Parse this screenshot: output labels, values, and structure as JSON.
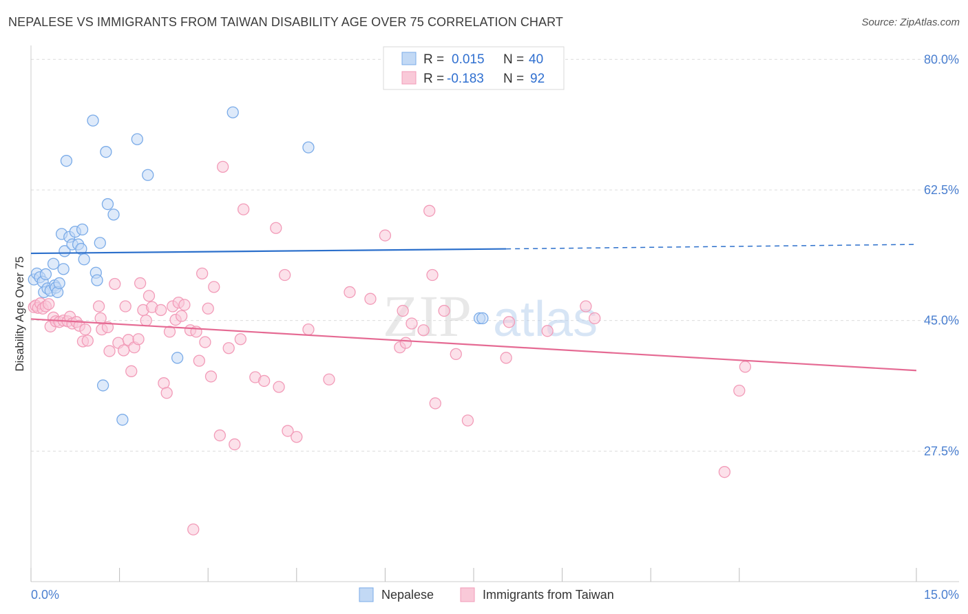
{
  "title": "NEPALESE VS IMMIGRANTS FROM TAIWAN DISABILITY AGE OVER 75 CORRELATION CHART",
  "source": "Source: ZipAtlas.com",
  "watermark": {
    "zip": "ZIP",
    "atlas": "atlas"
  },
  "stats_box": {
    "rows": [
      {
        "r_label": "R =",
        "r_value": "0.015",
        "n_label": "N =",
        "n_value": "40"
      },
      {
        "r_label": "R =",
        "r_value": "-0.183",
        "n_label": "N =",
        "n_value": "92"
      }
    ]
  },
  "chart_data": {
    "type": "scatter",
    "title": "NEPALESE VS IMMIGRANTS FROM TAIWAN DISABILITY AGE OVER 75 CORRELATION CHART",
    "xlabel": "",
    "ylabel": "Disability Age Over 75",
    "xlim": [
      0,
      15
    ],
    "ylim": [
      10,
      81.5
    ],
    "x_tick_labels": [
      {
        "value": 0,
        "label": "0.0%"
      },
      {
        "value": 15,
        "label": "15.0%"
      }
    ],
    "y_tick_labels": [
      {
        "value": 80,
        "label": "80.0%"
      },
      {
        "value": 62.5,
        "label": "62.5%"
      },
      {
        "value": 45,
        "label": "45.0%"
      },
      {
        "value": 27.5,
        "label": "27.5%"
      }
    ],
    "x_minor_ticks": [
      0,
      1.5,
      3,
      4.5,
      6,
      7.5,
      9,
      10.5,
      12,
      15
    ],
    "grid": true,
    "legend_position": "bottom-center",
    "series": [
      {
        "name": "Nepalese",
        "color": "#7aabe8",
        "fill": "#c2d9f5",
        "line_color": "#2b6fcb",
        "trend": {
          "x0": 0,
          "y0": 54.0,
          "x1": 8.05,
          "y1": 54.6,
          "dash_to_x": 15,
          "dash_to_y": 55.2
        },
        "points": [
          [
            0.05,
            50.5
          ],
          [
            0.1,
            51.3
          ],
          [
            0.15,
            50.8
          ],
          [
            0.2,
            50.2
          ],
          [
            0.22,
            48.8
          ],
          [
            0.25,
            51.2
          ],
          [
            0.28,
            49.3
          ],
          [
            0.33,
            49.0
          ],
          [
            0.38,
            52.6
          ],
          [
            0.4,
            49.7
          ],
          [
            0.42,
            49.4
          ],
          [
            0.45,
            48.8
          ],
          [
            0.48,
            50.0
          ],
          [
            0.52,
            56.6
          ],
          [
            0.55,
            51.9
          ],
          [
            0.57,
            54.3
          ],
          [
            0.6,
            66.4
          ],
          [
            0.65,
            56.2
          ],
          [
            0.7,
            55.2
          ],
          [
            0.75,
            56.9
          ],
          [
            0.8,
            55.2
          ],
          [
            0.85,
            54.6
          ],
          [
            0.87,
            57.2
          ],
          [
            0.9,
            53.2
          ],
          [
            1.05,
            71.8
          ],
          [
            1.1,
            51.4
          ],
          [
            1.12,
            50.4
          ],
          [
            1.17,
            55.4
          ],
          [
            1.22,
            36.3
          ],
          [
            1.27,
            67.6
          ],
          [
            1.3,
            60.6
          ],
          [
            1.4,
            59.2
          ],
          [
            1.55,
            31.7
          ],
          [
            1.8,
            69.3
          ],
          [
            1.98,
            64.5
          ],
          [
            2.48,
            40.0
          ],
          [
            3.42,
            72.9
          ],
          [
            4.7,
            68.2
          ],
          [
            7.6,
            45.3
          ],
          [
            7.65,
            45.3
          ]
        ]
      },
      {
        "name": "Immigrants from Taiwan",
        "color": "#f29bb8",
        "fill": "#f9c9d8",
        "line_color": "#e56a93",
        "trend": {
          "x0": 0,
          "y0": 45.2,
          "x1": 15,
          "y1": 38.3
        },
        "points": [
          [
            0.05,
            46.8
          ],
          [
            0.08,
            47.0
          ],
          [
            0.12,
            46.7
          ],
          [
            0.16,
            47.3
          ],
          [
            0.2,
            46.6
          ],
          [
            0.25,
            46.9
          ],
          [
            0.3,
            47.2
          ],
          [
            0.33,
            44.2
          ],
          [
            0.38,
            45.4
          ],
          [
            0.42,
            44.9
          ],
          [
            0.48,
            44.8
          ],
          [
            0.55,
            45.0
          ],
          [
            0.62,
            44.9
          ],
          [
            0.66,
            45.5
          ],
          [
            0.7,
            44.6
          ],
          [
            0.77,
            44.8
          ],
          [
            0.82,
            44.3
          ],
          [
            0.88,
            42.2
          ],
          [
            0.92,
            43.8
          ],
          [
            0.96,
            42.3
          ],
          [
            1.15,
            46.9
          ],
          [
            1.18,
            45.3
          ],
          [
            1.2,
            43.8
          ],
          [
            1.3,
            44.1
          ],
          [
            1.33,
            40.9
          ],
          [
            1.42,
            49.9
          ],
          [
            1.48,
            42.0
          ],
          [
            1.57,
            41.0
          ],
          [
            1.6,
            46.9
          ],
          [
            1.65,
            42.4
          ],
          [
            1.7,
            38.2
          ],
          [
            1.75,
            41.4
          ],
          [
            1.82,
            42.5
          ],
          [
            1.85,
            50.0
          ],
          [
            1.9,
            46.4
          ],
          [
            1.95,
            45.0
          ],
          [
            2.0,
            48.3
          ],
          [
            2.05,
            46.8
          ],
          [
            2.2,
            46.4
          ],
          [
            2.25,
            36.6
          ],
          [
            2.3,
            35.3
          ],
          [
            2.35,
            43.5
          ],
          [
            2.4,
            46.9
          ],
          [
            2.45,
            45.1
          ],
          [
            2.5,
            47.4
          ],
          [
            2.55,
            45.6
          ],
          [
            2.6,
            47.1
          ],
          [
            2.7,
            43.7
          ],
          [
            2.75,
            17.0
          ],
          [
            2.8,
            43.5
          ],
          [
            2.85,
            39.6
          ],
          [
            2.9,
            51.3
          ],
          [
            2.95,
            42.1
          ],
          [
            3.0,
            46.6
          ],
          [
            3.05,
            37.5
          ],
          [
            3.1,
            49.5
          ],
          [
            3.2,
            29.6
          ],
          [
            3.25,
            65.6
          ],
          [
            3.35,
            41.3
          ],
          [
            3.45,
            28.4
          ],
          [
            3.55,
            42.5
          ],
          [
            3.6,
            59.9
          ],
          [
            3.8,
            37.4
          ],
          [
            3.95,
            36.9
          ],
          [
            4.15,
            57.4
          ],
          [
            4.2,
            36.1
          ],
          [
            4.3,
            51.1
          ],
          [
            4.35,
            30.2
          ],
          [
            4.5,
            29.4
          ],
          [
            4.7,
            43.8
          ],
          [
            5.05,
            37.1
          ],
          [
            5.4,
            48.8
          ],
          [
            5.75,
            47.9
          ],
          [
            6.0,
            56.4
          ],
          [
            6.25,
            41.4
          ],
          [
            6.3,
            46.3
          ],
          [
            6.35,
            42.0
          ],
          [
            6.45,
            44.6
          ],
          [
            6.65,
            43.7
          ],
          [
            6.75,
            59.7
          ],
          [
            6.8,
            51.1
          ],
          [
            6.85,
            33.9
          ],
          [
            7.0,
            46.3
          ],
          [
            7.2,
            40.5
          ],
          [
            7.4,
            31.6
          ],
          [
            8.05,
            40.0
          ],
          [
            8.1,
            44.8
          ],
          [
            8.75,
            43.6
          ],
          [
            9.4,
            46.9
          ],
          [
            9.55,
            45.3
          ],
          [
            11.75,
            24.7
          ],
          [
            12.0,
            35.6
          ],
          [
            12.1,
            38.8
          ]
        ]
      }
    ]
  },
  "legend": {
    "items": [
      {
        "label": "Nepalese",
        "color": "#c2d9f5",
        "border": "#7aabe8"
      },
      {
        "label": "Immigrants from Taiwan",
        "color": "#f9c9d8",
        "border": "#f29bb8"
      }
    ]
  }
}
